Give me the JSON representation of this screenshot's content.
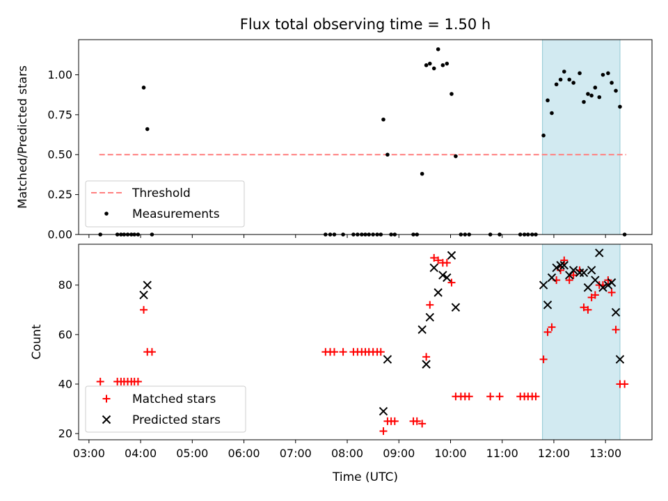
{
  "chart_data": [
    {
      "type": "scatter",
      "title": "Flux total observing time = 1.50 h",
      "xlabel": "",
      "ylabel": "Matched/Predicted stars",
      "xlim": [
        2.8,
        13.9
      ],
      "ylim": [
        0.0,
        1.22
      ],
      "yticks": [
        0.0,
        0.25,
        0.5,
        0.75,
        1.0
      ],
      "ytick_labels": [
        "0.00",
        "0.25",
        "0.50",
        "0.75",
        "1.00"
      ],
      "shaded_region": {
        "x": [
          11.78,
          13.28
        ],
        "color": "#add8e6"
      },
      "threshold": {
        "name": "Threshold",
        "y": 0.5,
        "x": [
          3.2,
          13.4
        ],
        "color": "#ff7f7f"
      },
      "legend_position": "lower-left",
      "series": [
        {
          "name": "Measurements",
          "color": "#000000",
          "marker": "dot",
          "points": [
            [
              3.22,
              0.0
            ],
            [
              3.55,
              0.0
            ],
            [
              3.62,
              0.0
            ],
            [
              3.68,
              0.0
            ],
            [
              3.75,
              0.0
            ],
            [
              3.82,
              0.0
            ],
            [
              3.88,
              0.0
            ],
            [
              3.95,
              0.0
            ],
            [
              4.06,
              0.92
            ],
            [
              4.13,
              0.66
            ],
            [
              4.22,
              0.0
            ],
            [
              7.58,
              0.0
            ],
            [
              7.67,
              0.0
            ],
            [
              7.75,
              0.0
            ],
            [
              7.92,
              0.0
            ],
            [
              8.12,
              0.0
            ],
            [
              8.2,
              0.0
            ],
            [
              8.28,
              0.0
            ],
            [
              8.35,
              0.0
            ],
            [
              8.42,
              0.0
            ],
            [
              8.5,
              0.0
            ],
            [
              8.58,
              0.0
            ],
            [
              8.65,
              0.0
            ],
            [
              8.7,
              0.72
            ],
            [
              8.78,
              0.5
            ],
            [
              8.85,
              0.0
            ],
            [
              8.92,
              0.0
            ],
            [
              9.28,
              0.0
            ],
            [
              9.35,
              0.0
            ],
            [
              9.45,
              0.38
            ],
            [
              9.53,
              1.06
            ],
            [
              9.6,
              1.07
            ],
            [
              9.68,
              1.04
            ],
            [
              9.76,
              1.16
            ],
            [
              9.85,
              1.06
            ],
            [
              9.93,
              1.07
            ],
            [
              10.02,
              0.88
            ],
            [
              10.1,
              0.49
            ],
            [
              10.2,
              0.0
            ],
            [
              10.28,
              0.0
            ],
            [
              10.36,
              0.0
            ],
            [
              10.77,
              0.0
            ],
            [
              10.95,
              0.0
            ],
            [
              11.35,
              0.0
            ],
            [
              11.43,
              0.0
            ],
            [
              11.5,
              0.0
            ],
            [
              11.58,
              0.0
            ],
            [
              11.65,
              0.0
            ],
            [
              11.8,
              0.62
            ],
            [
              11.88,
              0.84
            ],
            [
              11.96,
              0.76
            ],
            [
              12.05,
              0.94
            ],
            [
              12.13,
              0.97
            ],
            [
              12.2,
              1.02
            ],
            [
              12.3,
              0.97
            ],
            [
              12.38,
              0.95
            ],
            [
              12.5,
              1.01
            ],
            [
              12.58,
              0.83
            ],
            [
              12.66,
              0.88
            ],
            [
              12.73,
              0.87
            ],
            [
              12.8,
              0.92
            ],
            [
              12.88,
              0.86
            ],
            [
              12.95,
              1.0
            ],
            [
              13.05,
              1.01
            ],
            [
              13.12,
              0.95
            ],
            [
              13.2,
              0.9
            ],
            [
              13.28,
              0.8
            ],
            [
              13.37,
              0.0
            ]
          ]
        }
      ]
    },
    {
      "type": "scatter",
      "title": "",
      "xlabel": "Time (UTC)",
      "ylabel": "Count",
      "xlim": [
        2.8,
        13.9
      ],
      "ylim": [
        17.5,
        96.5
      ],
      "yticks": [
        20,
        40,
        60,
        80
      ],
      "ytick_labels": [
        "20",
        "40",
        "60",
        "80"
      ],
      "xticks": [
        3,
        4,
        5,
        6,
        7,
        8,
        9,
        10,
        11,
        12,
        13
      ],
      "xtick_labels": [
        "03:00",
        "04:00",
        "05:00",
        "06:00",
        "07:00",
        "08:00",
        "09:00",
        "10:00",
        "11:00",
        "12:00",
        "13:00"
      ],
      "shaded_region": {
        "x": [
          11.78,
          13.28
        ],
        "color": "#add8e6"
      },
      "legend_position": "lower-left",
      "series": [
        {
          "name": "Matched stars",
          "color": "#ff0000",
          "marker": "plus",
          "points": [
            [
              3.22,
              41
            ],
            [
              3.55,
              41
            ],
            [
              3.62,
              41
            ],
            [
              3.68,
              41
            ],
            [
              3.75,
              41
            ],
            [
              3.82,
              41
            ],
            [
              3.88,
              41
            ],
            [
              3.95,
              41
            ],
            [
              4.06,
              70
            ],
            [
              4.13,
              53
            ],
            [
              4.22,
              53
            ],
            [
              7.58,
              53
            ],
            [
              7.67,
              53
            ],
            [
              7.75,
              53
            ],
            [
              7.92,
              53
            ],
            [
              8.12,
              53
            ],
            [
              8.2,
              53
            ],
            [
              8.28,
              53
            ],
            [
              8.35,
              53
            ],
            [
              8.42,
              53
            ],
            [
              8.5,
              53
            ],
            [
              8.58,
              53
            ],
            [
              8.65,
              53
            ],
            [
              8.7,
              21
            ],
            [
              8.78,
              25
            ],
            [
              8.85,
              25
            ],
            [
              8.92,
              25
            ],
            [
              9.28,
              25
            ],
            [
              9.35,
              25
            ],
            [
              9.45,
              24
            ],
            [
              9.53,
              51
            ],
            [
              9.6,
              72
            ],
            [
              9.68,
              91
            ],
            [
              9.76,
              90
            ],
            [
              9.85,
              89
            ],
            [
              9.93,
              89
            ],
            [
              10.02,
              81
            ],
            [
              10.1,
              35
            ],
            [
              10.2,
              35
            ],
            [
              10.28,
              35
            ],
            [
              10.36,
              35
            ],
            [
              10.77,
              35
            ],
            [
              10.95,
              35
            ],
            [
              11.35,
              35
            ],
            [
              11.43,
              35
            ],
            [
              11.5,
              35
            ],
            [
              11.58,
              35
            ],
            [
              11.65,
              35
            ],
            [
              11.8,
              50
            ],
            [
              11.88,
              61
            ],
            [
              11.96,
              63
            ],
            [
              12.05,
              82
            ],
            [
              12.13,
              86
            ],
            [
              12.2,
              90
            ],
            [
              12.3,
              82
            ],
            [
              12.38,
              84
            ],
            [
              12.5,
              86
            ],
            [
              12.58,
              71
            ],
            [
              12.66,
              70
            ],
            [
              12.73,
              75
            ],
            [
              12.8,
              76
            ],
            [
              12.88,
              80
            ],
            [
              12.95,
              80
            ],
            [
              13.05,
              82
            ],
            [
              13.12,
              77
            ],
            [
              13.2,
              62
            ],
            [
              13.28,
              40
            ],
            [
              13.37,
              40
            ]
          ]
        },
        {
          "name": "Predicted stars",
          "color": "#000000",
          "marker": "x",
          "points": [
            [
              4.06,
              76
            ],
            [
              4.13,
              80
            ],
            [
              8.7,
              29
            ],
            [
              8.78,
              50
            ],
            [
              9.45,
              62
            ],
            [
              9.53,
              48
            ],
            [
              9.6,
              67
            ],
            [
              9.68,
              87
            ],
            [
              9.76,
              77
            ],
            [
              9.85,
              84
            ],
            [
              9.93,
              83
            ],
            [
              10.02,
              92
            ],
            [
              10.1,
              71
            ],
            [
              11.8,
              80
            ],
            [
              11.88,
              72
            ],
            [
              11.96,
              83
            ],
            [
              12.05,
              87
            ],
            [
              12.13,
              88
            ],
            [
              12.2,
              88
            ],
            [
              12.3,
              84
            ],
            [
              12.38,
              86
            ],
            [
              12.5,
              85
            ],
            [
              12.58,
              85
            ],
            [
              12.66,
              79
            ],
            [
              12.73,
              86
            ],
            [
              12.8,
              82
            ],
            [
              12.88,
              93
            ],
            [
              12.95,
              79
            ],
            [
              13.05,
              80
            ],
            [
              13.12,
              81
            ],
            [
              13.2,
              69
            ],
            [
              13.28,
              50
            ]
          ]
        }
      ]
    }
  ]
}
